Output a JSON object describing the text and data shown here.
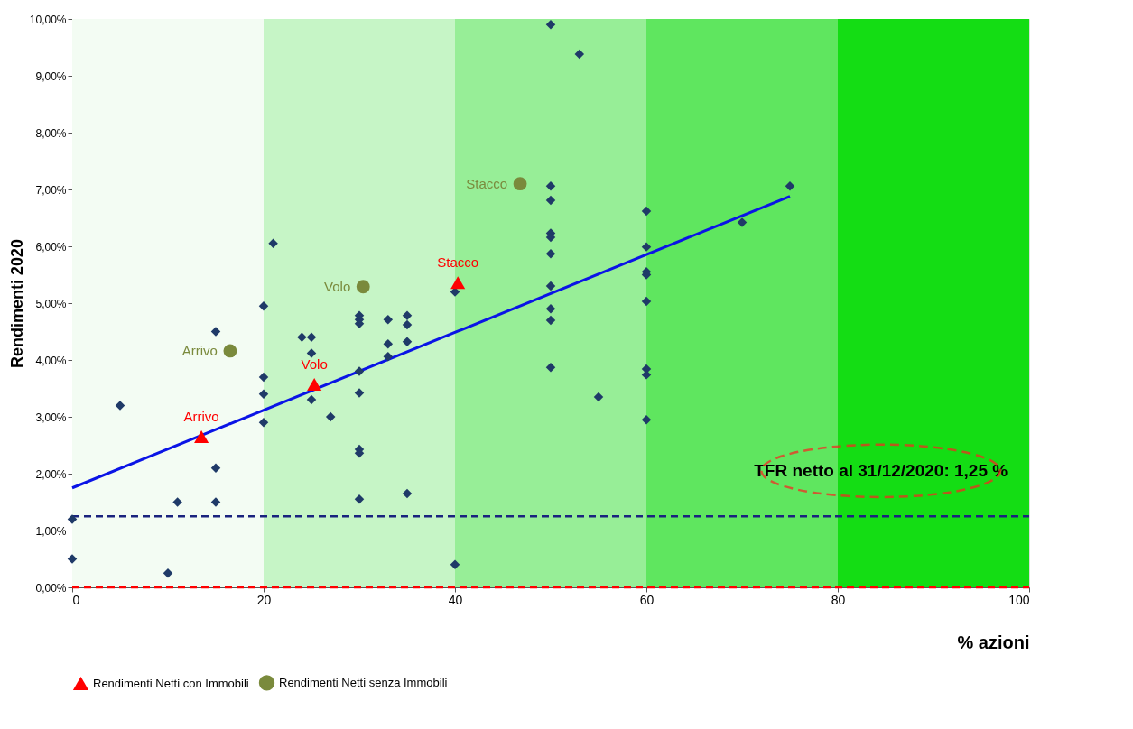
{
  "chart_data": {
    "type": "scatter",
    "ylabel": "Rendimenti 2020",
    "xlabel": "% azioni",
    "xlim": [
      0,
      100
    ],
    "xticks": [
      0,
      20,
      40,
      60,
      80,
      100
    ],
    "ylim": [
      0,
      10
    ],
    "yticks": [
      {
        "value": 0,
        "label": "0,00%"
      },
      {
        "value": 1,
        "label": "1,00%"
      },
      {
        "value": 2,
        "label": "2,00%"
      },
      {
        "value": 3,
        "label": "3,00%"
      },
      {
        "value": 4,
        "label": "4,00%"
      },
      {
        "value": 5,
        "label": "5,00%"
      },
      {
        "value": 6,
        "label": "6,00%"
      },
      {
        "value": 7,
        "label": "7,00%"
      },
      {
        "value": 8,
        "label": "8,00%"
      },
      {
        "value": 9,
        "label": "9,00%"
      },
      {
        "value": 10,
        "label": "10,00%"
      }
    ],
    "grid": false,
    "legend": "bottom",
    "bands": [
      {
        "axis": "x",
        "from": 0,
        "to": 20,
        "color": "#f3fcf3"
      },
      {
        "axis": "x",
        "from": 20,
        "to": 40,
        "color": "#c6f5c6"
      },
      {
        "axis": "x",
        "from": 40,
        "to": 60,
        "color": "#97ee97"
      },
      {
        "axis": "x",
        "from": 60,
        "to": 80,
        "color": "#5fe65f"
      },
      {
        "axis": "x",
        "from": 80,
        "to": 100,
        "color": "#14dd14"
      }
    ],
    "ref_lines": [
      {
        "axis": "y",
        "value": 1.25,
        "color": "#1a237e",
        "line_style": "dashed"
      },
      {
        "axis": "y",
        "value": 0,
        "color": "#ff0000",
        "line_style": "dashed"
      }
    ],
    "annotations": [
      "TFR netto al 31/12/2020: 1,25 %"
    ],
    "series": [
      {
        "marker": "diamond",
        "color": "#1f3a68",
        "x": [
          0,
          0,
          5,
          10,
          11,
          15,
          15,
          15,
          20,
          20,
          20,
          20,
          21,
          24,
          25,
          25,
          25,
          27,
          30,
          30,
          30,
          30,
          30,
          30,
          30,
          30,
          33,
          33,
          33,
          35,
          35,
          35,
          35,
          40,
          40,
          50,
          50,
          50,
          50,
          50,
          50,
          50,
          50,
          50,
          50,
          53,
          55,
          60,
          60,
          60,
          60,
          60,
          60,
          60,
          60,
          70,
          75
        ],
        "values": [
          0.5,
          1.2,
          3.2,
          0.25,
          1.5,
          4.5,
          2.1,
          1.5,
          4.95,
          3.7,
          3.4,
          2.9,
          6.05,
          4.4,
          4.4,
          4.12,
          3.3,
          3.0,
          4.78,
          4.71,
          4.64,
          3.8,
          3.42,
          2.43,
          2.36,
          1.55,
          4.71,
          4.28,
          4.06,
          4.78,
          4.62,
          4.32,
          1.65,
          0.4,
          5.2,
          9.9,
          7.06,
          6.81,
          6.23,
          6.16,
          5.87,
          5.3,
          4.9,
          4.7,
          3.87,
          9.38,
          3.35,
          6.62,
          5.99,
          5.55,
          5.5,
          5.03,
          3.84,
          3.74,
          2.95,
          6.42,
          7.06
        ]
      },
      {
        "type": "line",
        "color": "#0a14e6",
        "x": [
          0,
          75
        ],
        "values": [
          1.75,
          6.88
        ]
      },
      {
        "marker": "triangle",
        "name": "Rendimenti Netti con Immobili",
        "color": "#ff0000",
        "x": [
          13.5,
          25.3,
          40.3
        ],
        "values": [
          2.65,
          3.57,
          5.36
        ],
        "value_labels": [
          "Arrivo",
          "Volo",
          "Stacco"
        ]
      },
      {
        "marker": "circle",
        "name": "Rendimenti Netti senza Immobili",
        "color": "#7a8a3c",
        "x": [
          16.5,
          30.4,
          46.8
        ],
        "values": [
          4.16,
          5.29,
          7.1
        ],
        "value_labels": [
          "Arrivo",
          "Volo",
          "Stacco"
        ]
      }
    ]
  }
}
